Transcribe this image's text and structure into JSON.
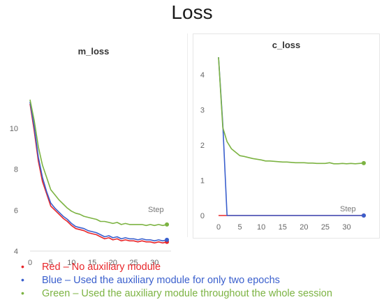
{
  "page_title": "Loss",
  "legend": [
    {
      "text": "Red – No auxiliary module",
      "color": "#e8262a"
    },
    {
      "text": "Blue – Used the auxiliary module for only two epochs",
      "color": "#3a5fcd"
    },
    {
      "text": "Green – Used the auxiliary module throughout the whole session",
      "color": "#7cb342"
    }
  ],
  "chart_data": [
    {
      "type": "line",
      "title": "m_loss",
      "xlabel": "Step",
      "ylabel": "",
      "xlim": [
        0,
        34
      ],
      "ylim": [
        4,
        11.5
      ],
      "xticks": [
        0,
        5,
        10,
        15,
        20,
        25,
        30
      ],
      "yticks": [
        4,
        6,
        8,
        10
      ],
      "grid": false,
      "series": [
        {
          "color": "#e8262a",
          "x": [
            0,
            1,
            2,
            3,
            4,
            5,
            6,
            7,
            8,
            9,
            10,
            11,
            12,
            13,
            14,
            15,
            16,
            17,
            18,
            19,
            20,
            21,
            22,
            23,
            24,
            25,
            26,
            27,
            28,
            29,
            30,
            31,
            32,
            33
          ],
          "y": [
            11.2,
            9.9,
            8.4,
            7.4,
            6.8,
            6.2,
            6.0,
            5.8,
            5.6,
            5.45,
            5.25,
            5.1,
            5.05,
            5.0,
            4.9,
            4.85,
            4.8,
            4.7,
            4.6,
            4.65,
            4.55,
            4.6,
            4.5,
            4.55,
            4.5,
            4.5,
            4.45,
            4.5,
            4.45,
            4.45,
            4.4,
            4.45,
            4.4,
            4.45
          ]
        },
        {
          "color": "#3a5fcd",
          "x": [
            0,
            1,
            2,
            3,
            4,
            5,
            6,
            7,
            8,
            9,
            10,
            11,
            12,
            13,
            14,
            15,
            16,
            17,
            18,
            19,
            20,
            21,
            22,
            23,
            24,
            25,
            26,
            27,
            28,
            29,
            30,
            31,
            32,
            33
          ],
          "y": [
            11.3,
            10.1,
            8.6,
            7.6,
            6.9,
            6.35,
            6.1,
            5.9,
            5.7,
            5.55,
            5.35,
            5.2,
            5.15,
            5.1,
            5.0,
            4.95,
            4.9,
            4.8,
            4.7,
            4.75,
            4.65,
            4.7,
            4.6,
            4.65,
            4.6,
            4.6,
            4.55,
            4.6,
            4.55,
            4.55,
            4.5,
            4.55,
            4.5,
            4.55
          ]
        },
        {
          "color": "#7cb342",
          "x": [
            0,
            1,
            2,
            3,
            4,
            5,
            6,
            7,
            8,
            9,
            10,
            11,
            12,
            13,
            14,
            15,
            16,
            17,
            18,
            19,
            20,
            21,
            22,
            23,
            24,
            25,
            26,
            27,
            28,
            29,
            30,
            31,
            32,
            33
          ],
          "y": [
            11.4,
            10.4,
            9.1,
            8.2,
            7.6,
            7.0,
            6.75,
            6.5,
            6.3,
            6.1,
            5.95,
            5.85,
            5.8,
            5.7,
            5.65,
            5.6,
            5.55,
            5.45,
            5.45,
            5.4,
            5.35,
            5.4,
            5.3,
            5.35,
            5.3,
            5.3,
            5.3,
            5.3,
            5.25,
            5.3,
            5.25,
            5.3,
            5.25,
            5.3
          ]
        }
      ]
    },
    {
      "type": "line",
      "title": "c_loss",
      "xlabel": "Step",
      "ylabel": "",
      "xlim": [
        0,
        34
      ],
      "ylim": [
        0,
        4.5
      ],
      "xticks": [
        0,
        5,
        10,
        15,
        20,
        25,
        30
      ],
      "yticks": [
        0,
        1,
        2,
        3,
        4
      ],
      "grid": false,
      "series": [
        {
          "color": "#e8262a",
          "x": [
            0,
            34
          ],
          "y": [
            0,
            0
          ]
        },
        {
          "color": "#3a5fcd",
          "x": [
            0,
            1,
            2,
            34
          ],
          "y": [
            4.5,
            2.6,
            0,
            0
          ]
        },
        {
          "color": "#7cb342",
          "x": [
            0,
            1,
            2,
            3,
            4,
            5,
            6,
            7,
            8,
            9,
            10,
            11,
            12,
            13,
            14,
            15,
            16,
            17,
            18,
            19,
            20,
            21,
            22,
            23,
            24,
            25,
            26,
            27,
            28,
            29,
            30,
            31,
            32,
            33,
            34
          ],
          "y": [
            4.5,
            2.5,
            2.1,
            1.9,
            1.8,
            1.7,
            1.68,
            1.65,
            1.62,
            1.6,
            1.58,
            1.55,
            1.55,
            1.54,
            1.53,
            1.52,
            1.52,
            1.51,
            1.5,
            1.5,
            1.5,
            1.49,
            1.49,
            1.48,
            1.48,
            1.48,
            1.5,
            1.47,
            1.47,
            1.48,
            1.47,
            1.48,
            1.47,
            1.48,
            1.49
          ]
        }
      ]
    }
  ]
}
